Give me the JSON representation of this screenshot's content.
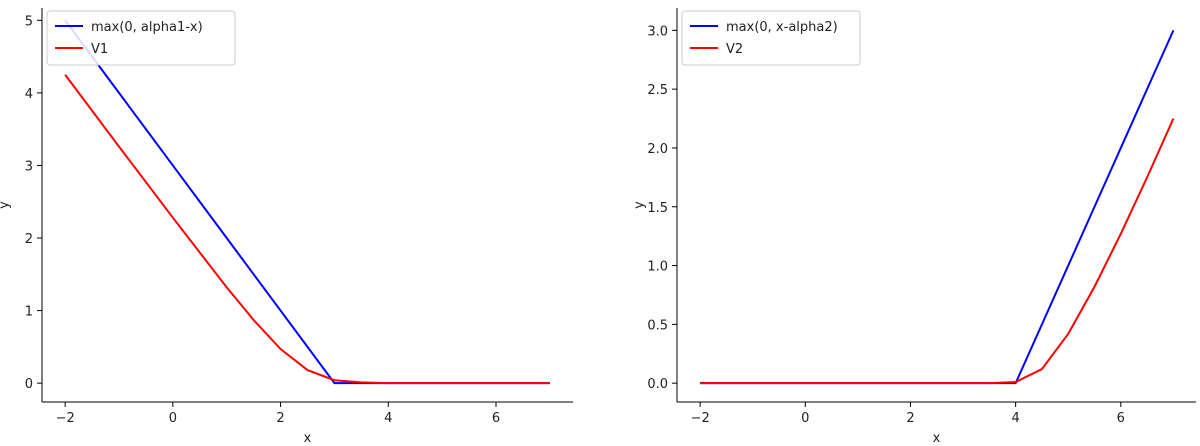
{
  "chart_data": [
    {
      "type": "line",
      "xlabel": "x",
      "ylabel": "y",
      "x": [
        -2,
        -1,
        0,
        1,
        1.5,
        2,
        2.5,
        3,
        3.5,
        4,
        5,
        6,
        7
      ],
      "series": [
        {
          "name": "max(0, alpha1-x)",
          "color": "#0000ff",
          "values": [
            5,
            4,
            3,
            2,
            1.5,
            1,
            0.5,
            0,
            0,
            0,
            0,
            0,
            0
          ]
        },
        {
          "name": "V1",
          "color": "#ff0000",
          "values": [
            4.25,
            3.26,
            2.28,
            1.32,
            0.87,
            0.47,
            0.18,
            0.04,
            0.01,
            0,
            0,
            0,
            0
          ]
        }
      ],
      "xlim": [
        -2.43,
        7.43
      ],
      "ylim": [
        -0.26,
        5.17
      ],
      "xticks": [
        {
          "value": -2,
          "label": "−2"
        },
        0,
        2,
        4,
        6
      ],
      "yticks": [
        0,
        1,
        2,
        3,
        4,
        5
      ],
      "legend": "upper left"
    },
    {
      "type": "line",
      "xlabel": "x",
      "ylabel": "y",
      "x": [
        -2,
        -1,
        0,
        1,
        2,
        3,
        3.5,
        4,
        4.5,
        5,
        5.5,
        6,
        6.5,
        7
      ],
      "series": [
        {
          "name": "max(0, x-alpha2)",
          "color": "#0000ff",
          "values": [
            0,
            0,
            0,
            0,
            0,
            0,
            0,
            0,
            0.5,
            1,
            1.5,
            2,
            2.5,
            3
          ]
        },
        {
          "name": "V2",
          "color": "#ff0000",
          "values": [
            0,
            0,
            0,
            0,
            0,
            0,
            0,
            0.01,
            0.12,
            0.42,
            0.82,
            1.27,
            1.75,
            2.25
          ]
        }
      ],
      "xlim": [
        -2.44,
        7.43
      ],
      "ylim": [
        -0.16,
        3.19
      ],
      "xticks": [
        {
          "value": -2,
          "label": "−2"
        },
        0,
        2,
        4,
        6
      ],
      "yticks": [
        {
          "value": 0,
          "label": "0.0"
        },
        0.5,
        {
          "value": 1,
          "label": "1.0"
        },
        1.5,
        {
          "value": 2,
          "label": "2.0"
        },
        2.5,
        {
          "value": 3,
          "label": "3.0"
        }
      ],
      "legend": "upper left"
    }
  ]
}
